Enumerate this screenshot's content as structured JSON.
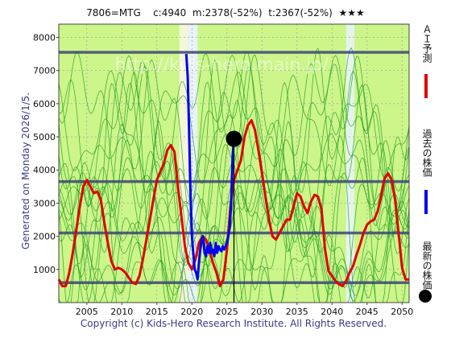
{
  "header": {
    "code": "7806=MTG",
    "current": "c:4940",
    "min_label": "m:2378(-52%)",
    "target_label": "t:2367(-52%)",
    "stars": "★★★"
  },
  "side_label": "Generated on Monday 2026/1/5.",
  "footer": "Copyright (c) Kids-Hero Research Institute. All Rights Reserved.",
  "watermark": "http://kids-hero.main.jp/",
  "legend": [
    {
      "label": "ＡＩ予測",
      "color": "#e00000"
    },
    {
      "label": "過去の株価",
      "color": "#0000ee"
    },
    {
      "label": "最新の株価",
      "color": "#000000"
    }
  ],
  "colors": {
    "plot_bg": "#ccf58a",
    "green_lines": "#1a9a1a",
    "hlines": "#3b4577",
    "ai": "#e00000",
    "past": "#0000ee",
    "latest": "#000000"
  },
  "chart_data": {
    "type": "line",
    "xlim": [
      2001,
      2051
    ],
    "ylim": [
      0,
      8400
    ],
    "x_ticks": [
      2005,
      2010,
      2015,
      2020,
      2025,
      2030,
      2035,
      2040,
      2045,
      2050
    ],
    "y_ticks": [
      1000,
      2000,
      3000,
      4000,
      5000,
      6000,
      7000,
      8000
    ],
    "grid": true,
    "horizontal_levels": [
      7550,
      3650,
      2100,
      600
    ],
    "series": [
      {
        "name": "ＡＩ予測",
        "x": [
          2001,
          2001.5,
          2002,
          2002.5,
          2003,
          2003.5,
          2004,
          2004.5,
          2005,
          2005.5,
          2006,
          2006.5,
          2007,
          2007.5,
          2008,
          2008.5,
          2009,
          2009.5,
          2010,
          2010.5,
          2011,
          2011.5,
          2012,
          2012.5,
          2013,
          2013.5,
          2014,
          2014.5,
          2015,
          2015.5,
          2016,
          2016.5,
          2017,
          2017.5,
          2018,
          2018.5,
          2019,
          2019.5,
          2020,
          2020.5,
          2021,
          2021.5,
          2022,
          2022.5,
          2023,
          2023.5,
          2024,
          2024.5,
          2025,
          2025.5,
          2026,
          2026.5,
          2027,
          2027.5,
          2028,
          2028.5,
          2029,
          2029.5,
          2030,
          2030.5,
          2031,
          2031.5,
          2032,
          2032.5,
          2033,
          2033.5,
          2034,
          2034.5,
          2035,
          2035.5,
          2036,
          2036.5,
          2037,
          2037.5,
          2038,
          2038.5,
          2039,
          2039.5,
          2040,
          2040.5,
          2041,
          2041.5,
          2042,
          2042.5,
          2043,
          2043.5,
          2044,
          2044.5,
          2045,
          2045.5,
          2046,
          2046.5,
          2047,
          2047.5,
          2048,
          2048.5,
          2049,
          2049.5,
          2050,
          2050.5,
          2051
        ],
        "values": [
          700,
          500,
          500,
          900,
          1500,
          2200,
          2900,
          3500,
          3700,
          3500,
          3300,
          3350,
          3100,
          2400,
          1800,
          1250,
          1000,
          1050,
          1000,
          900,
          750,
          600,
          560,
          800,
          1300,
          1900,
          2500,
          3100,
          3700,
          3950,
          4200,
          4600,
          4750,
          4550,
          3500,
          2600,
          1700,
          1200,
          1000,
          1300,
          1800,
          2000,
          1900,
          1600,
          1200,
          900,
          500,
          700,
          1600,
          2900,
          3700,
          4000,
          4300,
          5000,
          5350,
          5500,
          5200,
          4600,
          3900,
          3200,
          2500,
          2000,
          1900,
          2100,
          2300,
          2500,
          2500,
          2900,
          3300,
          3200,
          2900,
          2700,
          3050,
          3250,
          3200,
          2800,
          1600,
          950,
          800,
          650,
          550,
          500,
          650,
          900,
          1100,
          1450,
          1750,
          2100,
          2350,
          2450,
          2500,
          2750,
          3200,
          3750,
          3900,
          3700,
          3100,
          2100,
          1050,
          700,
          700
        ]
      },
      {
        "name": "過去の株価",
        "x": [
          2019.2,
          2019.4,
          2019.6,
          2019.8,
          2020.0,
          2020.2,
          2020.4,
          2020.6,
          2020.8,
          2021.0,
          2021.2,
          2021.4,
          2021.6,
          2021.8,
          2022.0,
          2022.2,
          2022.4,
          2022.6,
          2022.8,
          2023.0,
          2023.2,
          2023.4,
          2023.6,
          2023.8,
          2024.0,
          2024.2,
          2024.4,
          2024.6,
          2024.8,
          2025.0,
          2025.2,
          2025.4,
          2025.6,
          2025.8,
          2026.0
        ],
        "values": [
          7500,
          6800,
          5200,
          3200,
          2000,
          1500,
          1000,
          900,
          700,
          1200,
          1600,
          1900,
          2000,
          1500,
          1400,
          1700,
          1500,
          1800,
          1500,
          1600,
          1400,
          1800,
          1500,
          1700,
          1600,
          1550,
          1700,
          1600,
          1700,
          1800,
          2000,
          2300,
          3000,
          4400,
          4940
        ]
      }
    ],
    "latest_point": {
      "x": 2026.0,
      "y": 4940
    }
  }
}
